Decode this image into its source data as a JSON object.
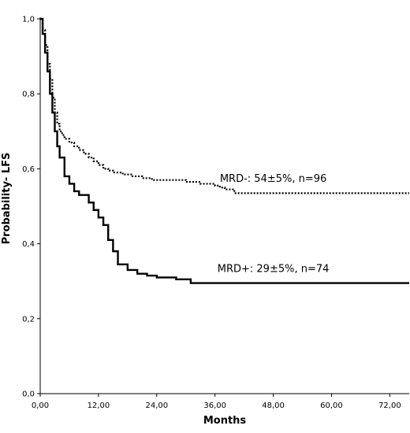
{
  "chart_data": {
    "type": "line",
    "title": "",
    "xlabel": "Months",
    "ylabel": "Probability- LFS",
    "xlim": [
      0,
      76
    ],
    "ylim": [
      0,
      1.0
    ],
    "x_ticks": [
      0,
      12,
      24,
      36,
      48,
      60,
      72
    ],
    "x_tick_labels": [
      "0,00",
      "12,00",
      "24,00",
      "36,00",
      "48,00",
      "60,00",
      "72,00"
    ],
    "y_ticks": [
      0,
      0.2,
      0.4,
      0.6,
      0.8,
      1.0
    ],
    "y_tick_labels": [
      "0,0",
      "0,2",
      "0,4",
      "0,6",
      "0,8",
      "1,0"
    ],
    "grid": false,
    "legend": "none",
    "series": [
      {
        "name": "MRD-: 54±5%, n=96",
        "style": "dotted",
        "color": "#000000",
        "x": [
          0,
          0.5,
          1,
          1.5,
          2,
          2.5,
          3,
          3.5,
          4,
          4.5,
          5,
          6,
          7,
          8,
          9,
          10,
          11,
          12,
          13,
          14,
          15,
          17,
          19,
          21,
          23,
          30,
          33,
          36,
          37,
          38,
          40,
          76
        ],
        "y": [
          1.0,
          0.97,
          0.93,
          0.88,
          0.84,
          0.79,
          0.75,
          0.72,
          0.7,
          0.69,
          0.68,
          0.67,
          0.66,
          0.65,
          0.64,
          0.63,
          0.62,
          0.61,
          0.6,
          0.595,
          0.59,
          0.585,
          0.58,
          0.575,
          0.57,
          0.565,
          0.56,
          0.555,
          0.55,
          0.545,
          0.535,
          0.535
        ]
      },
      {
        "name": "MRD+: 29±5%, n=74",
        "style": "solid",
        "color": "#000000",
        "x": [
          0,
          0.5,
          1,
          1.5,
          2,
          2.5,
          3,
          3.5,
          4,
          5,
          6,
          7,
          8,
          10,
          11,
          12,
          13,
          14,
          15,
          16,
          18,
          20,
          22,
          24,
          26,
          28,
          31,
          76
        ],
        "y": [
          1.0,
          0.96,
          0.91,
          0.86,
          0.8,
          0.75,
          0.7,
          0.66,
          0.63,
          0.58,
          0.56,
          0.54,
          0.53,
          0.51,
          0.49,
          0.47,
          0.45,
          0.41,
          0.38,
          0.345,
          0.33,
          0.32,
          0.315,
          0.31,
          0.31,
          0.305,
          0.295,
          0.295
        ]
      }
    ],
    "annotations": [
      {
        "text": "MRD-: 54±5%, n=96",
        "x": 48,
        "y": 0.565
      },
      {
        "text": "MRD+: 29±5%, n=74",
        "x": 48,
        "y": 0.325
      }
    ]
  }
}
